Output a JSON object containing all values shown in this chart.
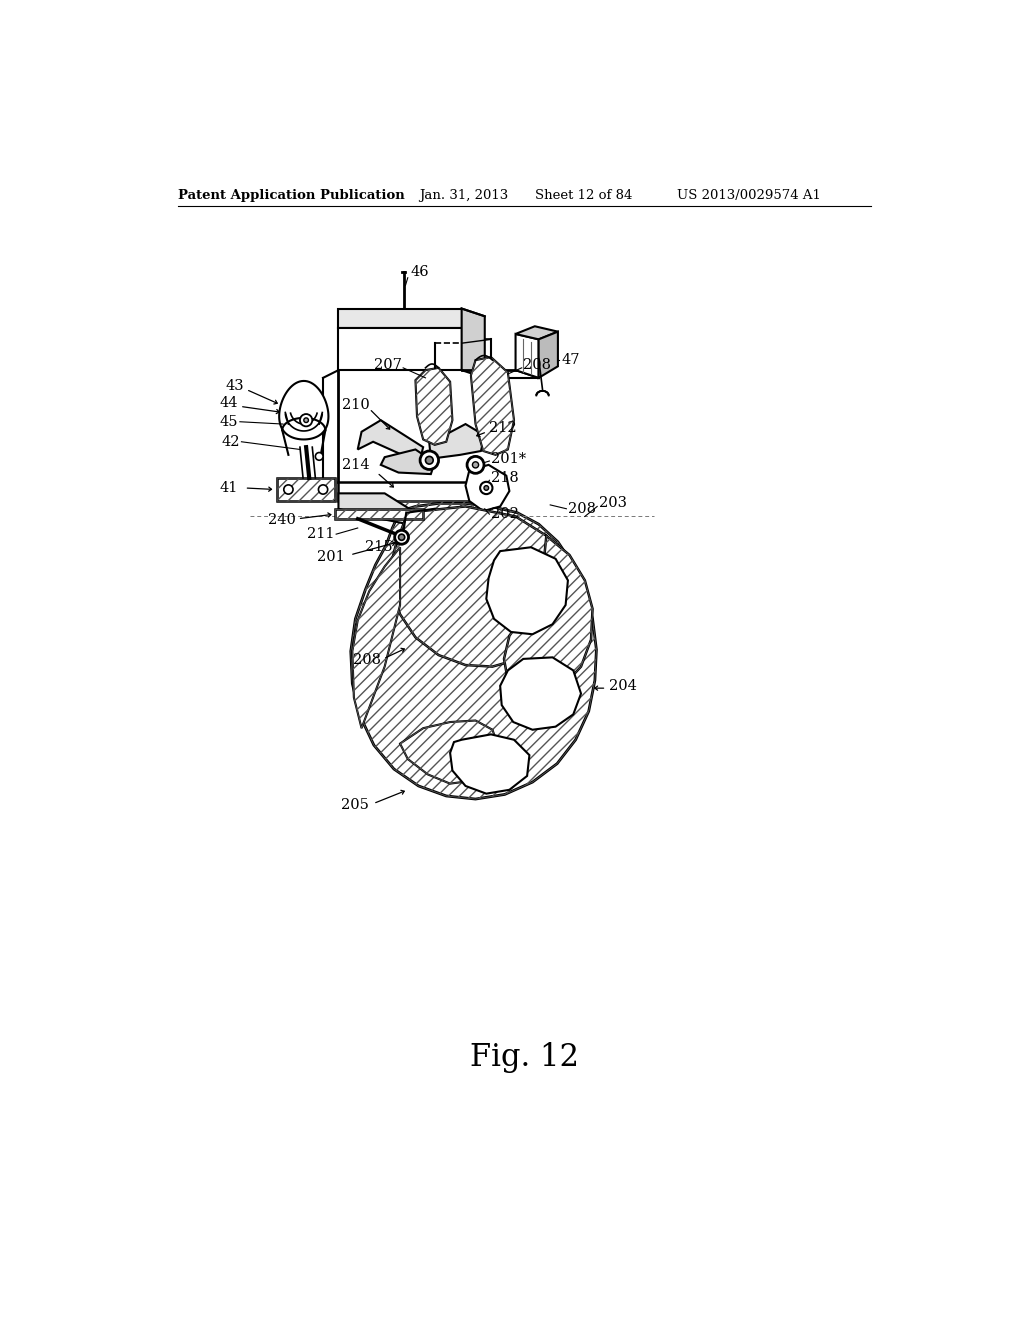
{
  "title": "Patent Application Publication",
  "date": "Jan. 31, 2013",
  "sheet": "Sheet 12 of 84",
  "patent_num": "US 2013/0029574 A1",
  "fig_label": "Fig. 12",
  "background_color": "#ffffff",
  "line_color": "#000000",
  "dark_color": "#1a1a1a",
  "gray_color": "#888888",
  "light_gray": "#cccccc",
  "header_fontsize": 9.5,
  "fig_label_fontsize": 22,
  "label_fontsize": 10.5
}
